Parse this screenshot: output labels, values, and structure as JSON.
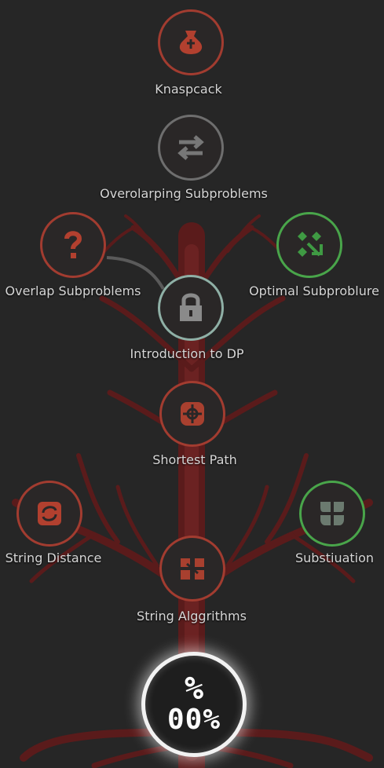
{
  "nodes": {
    "knapsack": {
      "label": "Knaspcack",
      "icon": "sack-icon",
      "state": "locked"
    },
    "overlapping": {
      "label": "Overolarping Subproblems",
      "icon": "swap-arrows-icon",
      "state": "grey"
    },
    "overlap": {
      "label": "Overlap Subproblems",
      "icon": "question-mark-icon",
      "state": "locked"
    },
    "optimal": {
      "label": "Optimal Subproblure",
      "icon": "diamond-arrows-icon",
      "state": "unlocked"
    },
    "intro": {
      "label": "Introduction to DP",
      "icon": "padlock-icon",
      "state": "current"
    },
    "shortest": {
      "label": "Shortest Path",
      "icon": "compass-icon",
      "state": "locked"
    },
    "string_distance": {
      "label": "String Distance",
      "icon": "cycle-icon",
      "state": "locked"
    },
    "substitution": {
      "label": "Substiuation",
      "icon": "four-leaf-icon",
      "state": "unlocked"
    },
    "string_algorithms": {
      "label": "String Alggrithms",
      "icon": "puzzle-icon",
      "state": "locked"
    }
  },
  "progress": {
    "symbol": "%",
    "value": "00%"
  },
  "colors": {
    "background": "#262626",
    "locked": "#a23c30",
    "grey": "#6e6e6e",
    "unlocked": "#49a54a",
    "current": "#8fb0a6",
    "trunk": "#5e1c1c",
    "label": "#d6d6d6"
  }
}
